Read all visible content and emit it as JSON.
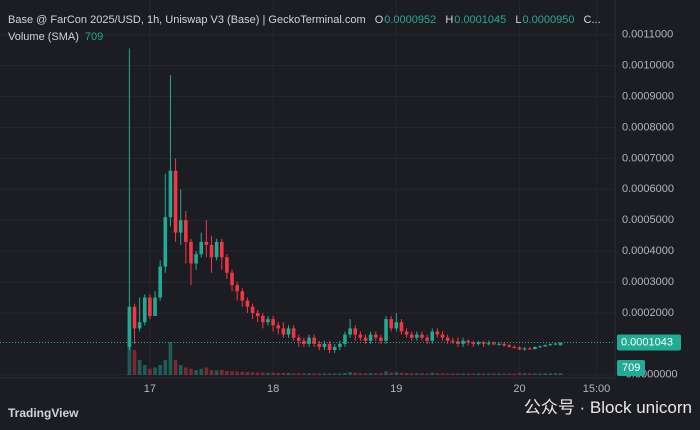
{
  "legend": {
    "title": "Base @ FarCon 2025/USD, 1h, Uniswap V3 (Base) | GeckoTerminal.com",
    "o_label": "O",
    "open": "0.0000952",
    "h_label": "H",
    "high": "0.0001045",
    "l_label": "L",
    "low": "0.0000950",
    "c_label": "C...",
    "volume_label": "Volume (SMA)"
  },
  "branding": "TradingView",
  "watermark": "公众号 · Block unicorn",
  "chart_data": {
    "type": "candlestick",
    "up_color": "#22ab94",
    "down_color": "#f23645",
    "grid": true,
    "x": [
      -4,
      -3,
      -2,
      -1,
      0,
      1,
      2,
      3,
      4,
      5,
      6,
      7,
      8,
      9,
      10,
      11,
      12,
      13,
      14,
      15,
      16,
      17,
      18,
      19,
      20,
      21,
      22,
      23,
      24,
      25,
      26,
      27,
      28,
      29,
      30,
      31,
      32,
      33,
      34,
      35,
      36,
      37,
      38,
      39,
      40,
      41,
      42,
      43,
      44,
      45,
      46,
      47,
      48,
      49,
      50,
      51,
      52,
      53,
      54,
      55,
      56,
      57,
      58,
      59,
      60,
      61,
      62,
      63,
      64,
      65,
      66,
      67,
      68,
      69,
      70,
      71,
      72,
      73,
      74,
      75,
      76,
      77,
      78,
      79,
      80
    ],
    "open": [
      9e-05,
      0.00022,
      0.00015,
      0.00017,
      0.00025,
      0.00019,
      0.00025,
      0.00035,
      0.00051,
      0.00066,
      0.00046,
      0.0005,
      0.00043,
      0.00036,
      0.00039,
      0.00043,
      0.00042,
      0.00038,
      0.00043,
      0.00038,
      0.00033,
      0.00029,
      0.00027,
      0.00024,
      0.00022,
      0.0002,
      0.00019,
      0.00017,
      0.00018,
      0.00016,
      0.00015,
      0.00013,
      0.00015,
      0.00012,
      0.00011,
      0.0001,
      0.00012,
      0.0001,
      9e-05,
      0.0001,
      8e-05,
      9e-05,
      0.0001,
      0.00013,
      0.00015,
      0.00013,
      0.00012,
      0.00011,
      0.00013,
      0.00012,
      0.00011,
      0.00018,
      0.00015,
      0.00017,
      0.00014,
      0.00013,
      0.00012,
      0.00013,
      0.00012,
      0.00011,
      0.00014,
      0.00013,
      0.00012,
      0.00011,
      0.000108,
      0.0001,
      0.00011,
      0.000105,
      0.0001,
      0.000105,
      0.0001,
      0.000102,
      9.8e-05,
      0.0001,
      9.5e-05,
      9e-05,
      8.8e-05,
      8.2e-05,
      8.5e-05,
      8.3e-05,
      9e-05,
      9.2e-05,
      9.6e-05,
      9.9e-05,
      9.52e-05
    ],
    "high": [
      0.001056,
      0.00023,
      0.00025,
      0.00026,
      0.00026,
      0.00027,
      0.00037,
      0.00065,
      0.00097,
      0.0007,
      0.0006,
      0.00053,
      0.00044,
      0.0004,
      0.00046,
      0.0005,
      0.00045,
      0.00044,
      0.00044,
      0.00039,
      0.00034,
      0.0003,
      0.00028,
      0.00025,
      0.00023,
      0.00021,
      0.0002,
      0.00019,
      0.00019,
      0.00017,
      0.00017,
      0.00016,
      0.00016,
      0.00013,
      0.00012,
      0.00013,
      0.00013,
      0.00011,
      0.00011,
      0.00011,
      0.0001,
      0.00011,
      0.00014,
      0.00018,
      0.00016,
      0.00014,
      0.00013,
      0.00014,
      0.00014,
      0.00013,
      0.00019,
      0.00019,
      0.0002,
      0.00018,
      0.00015,
      0.00014,
      0.00014,
      0.00014,
      0.00013,
      0.00015,
      0.00015,
      0.00014,
      0.00013,
      0.00012,
      0.00012,
      0.00012,
      0.000115,
      0.00011,
      0.00011,
      0.00011,
      0.00011,
      0.000108,
      0.000105,
      0.000104,
      0.0001,
      9.5e-05,
      9.2e-05,
      9e-05,
      9e-05,
      9.2e-05,
      9.5e-05,
      9.8e-05,
      0.000101,
      0.000103,
      0.0001045
    ],
    "low": [
      8e-05,
      0.0001,
      0.00014,
      0.00016,
      0.00018,
      0.00019,
      0.00024,
      0.00033,
      0.00048,
      0.00043,
      0.00042,
      0.00036,
      0.00029,
      0.00034,
      0.00038,
      0.00038,
      0.00033,
      0.00037,
      0.00034,
      0.00031,
      0.00027,
      0.00024,
      0.00022,
      0.0002,
      0.00018,
      0.00017,
      0.00015,
      0.00016,
      0.00014,
      0.00013,
      0.00012,
      0.00012,
      0.00011,
      9e-05,
      9e-05,
      9e-05,
      9e-05,
      8e-05,
      8e-05,
      7e-05,
      7e-05,
      8e-05,
      9e-05,
      0.00012,
      0.00011,
      0.00011,
      0.0001,
      0.0001,
      0.00011,
      0.0001,
      0.0001,
      0.00014,
      0.00014,
      0.00013,
      0.00012,
      0.00011,
      0.00011,
      0.00011,
      0.0001,
      0.0001,
      0.00012,
      0.00011,
      0.0001,
      0.0001,
      9e-05,
      9e-05,
      9.5e-05,
      9e-05,
      9.5e-05,
      9e-05,
      9.5e-05,
      9.6e-05,
      9.4e-05,
      9e-05,
      8.8e-05,
      8.5e-05,
      8e-05,
      7.8e-05,
      8e-05,
      8.2e-05,
      8.7e-05,
      9e-05,
      9.4e-05,
      9.6e-05,
      9.5e-05
    ],
    "close": [
      0.00022,
      0.00015,
      0.00017,
      0.00025,
      0.00019,
      0.00025,
      0.00035,
      0.00051,
      0.00066,
      0.00046,
      0.0005,
      0.00043,
      0.00036,
      0.00039,
      0.00043,
      0.00042,
      0.00038,
      0.00043,
      0.00038,
      0.00033,
      0.00029,
      0.00027,
      0.00024,
      0.00022,
      0.0002,
      0.00019,
      0.00017,
      0.00018,
      0.00016,
      0.00015,
      0.00013,
      0.00015,
      0.00012,
      0.00011,
      0.0001,
      0.00012,
      0.0001,
      9e-05,
      0.0001,
      8e-05,
      9e-05,
      0.0001,
      0.00013,
      0.00015,
      0.00013,
      0.00012,
      0.00011,
      0.00013,
      0.00012,
      0.00011,
      0.00018,
      0.00015,
      0.00017,
      0.00014,
      0.00013,
      0.00012,
      0.00013,
      0.00012,
      0.00011,
      0.00014,
      0.00013,
      0.00012,
      0.00011,
      0.000108,
      0.0001,
      0.00011,
      0.000105,
      0.0001,
      0.000105,
      0.0001,
      0.000102,
      9.8e-05,
      0.0001,
      9.5e-05,
      9e-05,
      8.8e-05,
      8.2e-05,
      8.5e-05,
      8.3e-05,
      9e-05,
      9.2e-05,
      9.6e-05,
      9.9e-05,
      0.000101,
      0.0001043
    ],
    "volume": [
      17000,
      10000,
      6000,
      4000,
      2500,
      3000,
      4000,
      6000,
      13200,
      6000,
      4000,
      3000,
      2500,
      2000,
      2500,
      3000,
      2000,
      1800,
      2000,
      1600,
      1500,
      1400,
      1300,
      1200,
      1100,
      1000,
      1000,
      900,
      900,
      800,
      800,
      800,
      700,
      700,
      700,
      700,
      700,
      600,
      600,
      600,
      600,
      600,
      800,
      1200,
      900,
      800,
      700,
      800,
      700,
      700,
      1500,
      1000,
      1100,
      900,
      800,
      700,
      700,
      700,
      600,
      900,
      700,
      700,
      600,
      600,
      600,
      600,
      600,
      600,
      600,
      600,
      600,
      600,
      600,
      600,
      600,
      600,
      900,
      700,
      600,
      600,
      600,
      650,
      700,
      700,
      709
    ],
    "volume_ylim": [
      0,
      20000
    ],
    "xlim": [
      -29.2,
      90.6
    ],
    "xticks": [
      {
        "value": 0,
        "label": "17"
      },
      {
        "value": 24,
        "label": "18"
      },
      {
        "value": 48,
        "label": "19"
      },
      {
        "value": 72,
        "label": "20"
      },
      {
        "value": 87,
        "label": "15:00"
      }
    ],
    "ylim": [
      -1.05e-05,
      0.0012125
    ],
    "yticks": [
      {
        "value": 0.0011,
        "label": "0.0011000"
      },
      {
        "value": 0.001,
        "label": "0.0010000"
      },
      {
        "value": 0.0009,
        "label": "0.0009000"
      },
      {
        "value": 0.0008,
        "label": "0.0008000"
      },
      {
        "value": 0.0007,
        "label": "0.0007000"
      },
      {
        "value": 0.0006,
        "label": "0.0006000"
      },
      {
        "value": 0.0005,
        "label": "0.0005000"
      },
      {
        "value": 0.0004,
        "label": "0.0004000"
      },
      {
        "value": 0.0003,
        "label": "0.0003000"
      },
      {
        "value": 0.0002,
        "label": "0.0002000"
      },
      {
        "value": 0,
        "label": "-0.0000000"
      }
    ]
  }
}
